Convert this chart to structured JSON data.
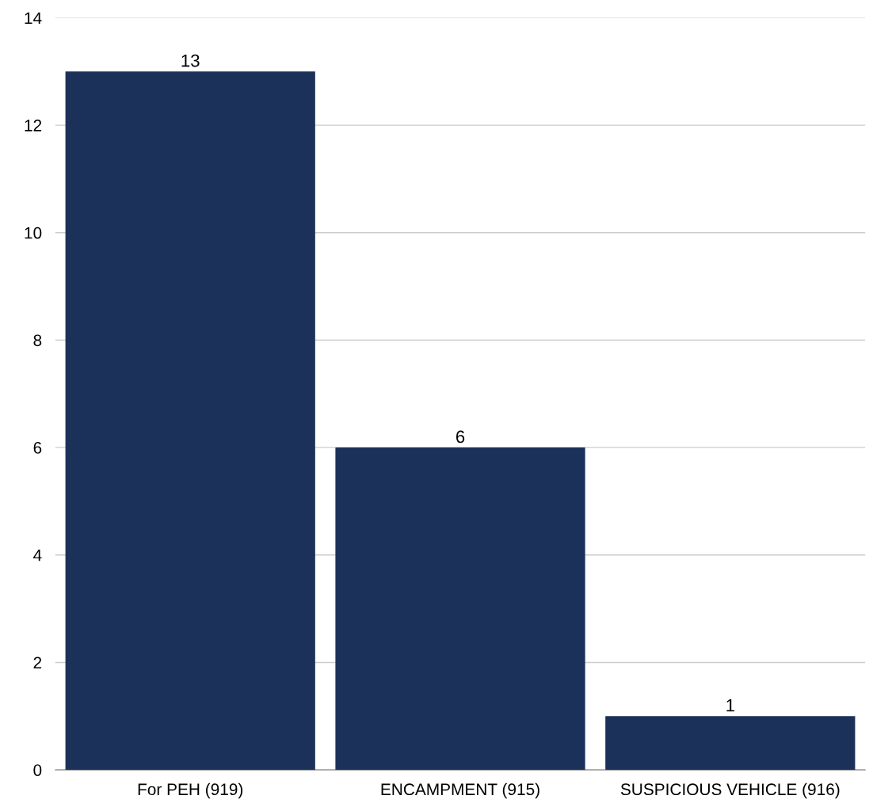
{
  "chart_data": {
    "type": "bar",
    "categories": [
      "For PEH (919)",
      "ENCAMPMENT (915)",
      "SUSPICIOUS VEHICLE (916)"
    ],
    "values": [
      13,
      6,
      1
    ],
    "color": "#1b3159",
    "ylim": [
      0,
      14
    ],
    "yticks": [
      0,
      2,
      4,
      6,
      8,
      10,
      12,
      14
    ],
    "grid": "y",
    "data_labels": true,
    "legend": false
  }
}
